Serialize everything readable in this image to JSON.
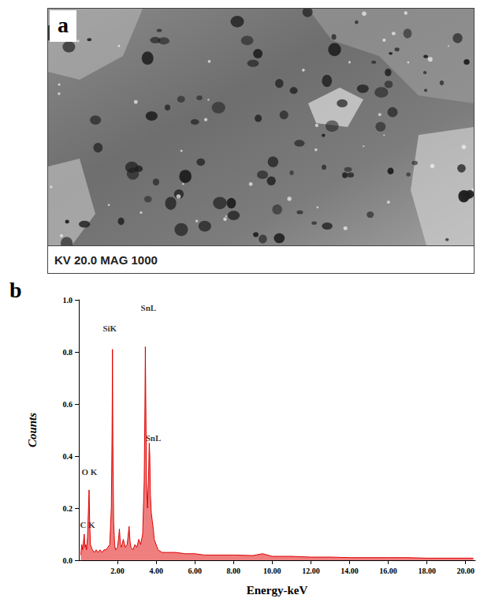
{
  "image_panel": {
    "label": "a",
    "footer": "KV 20.0 MAG 1000"
  },
  "chart_panel_label": "b",
  "chart_data": {
    "type": "line",
    "x_label": "Energy-keV",
    "y_label": "Counts",
    "color": "#e00000",
    "grid": false,
    "xlim": [
      0,
      20.5
    ],
    "ylim": [
      0,
      1.0
    ],
    "xticks": [
      {
        "value": 2,
        "label": "2.00"
      },
      {
        "value": 4,
        "label": "4.00"
      },
      {
        "value": 6,
        "label": "6.00"
      },
      {
        "value": 8,
        "label": "8.00"
      },
      {
        "value": 10,
        "label": "10.00"
      },
      {
        "value": 12,
        "label": "12.00"
      },
      {
        "value": 14,
        "label": "14.00"
      },
      {
        "value": 16,
        "label": "16.00"
      },
      {
        "value": 18,
        "label": "18.00"
      },
      {
        "value": 20,
        "label": "20.00"
      }
    ],
    "yticks": [
      {
        "value": 0,
        "label": "0.0"
      },
      0.2,
      0.4,
      0.6,
      0.8,
      {
        "value": 1.0,
        "label": "1.0"
      }
    ],
    "x": [
      0.1,
      0.15,
      0.2,
      0.25,
      0.28,
      0.32,
      0.36,
      0.4,
      0.45,
      0.5,
      0.53,
      0.56,
      0.6,
      0.7,
      0.8,
      0.9,
      1.0,
      1.1,
      1.2,
      1.3,
      1.4,
      1.5,
      1.6,
      1.68,
      1.72,
      1.74,
      1.76,
      1.8,
      1.85,
      1.9,
      2.0,
      2.05,
      2.1,
      2.15,
      2.2,
      2.3,
      2.4,
      2.5,
      2.6,
      2.65,
      2.7,
      2.8,
      2.9,
      3.0,
      3.1,
      3.2,
      3.3,
      3.38,
      3.42,
      3.44,
      3.47,
      3.5,
      3.55,
      3.6,
      3.64,
      3.67,
      3.7,
      3.75,
      3.8,
      3.85,
      3.9,
      4.0,
      4.1,
      4.3,
      4.6,
      5.0,
      5.5,
      6.0,
      6.5,
      7.0,
      8.0,
      9.0,
      9.5,
      10.0,
      11.0,
      12.0,
      13.0,
      14.0,
      15.0,
      16.0,
      17.0,
      18.0,
      19.0,
      20.0,
      20.4
    ],
    "values": [
      0.02,
      0.06,
      0.04,
      0.08,
      0.1,
      0.05,
      0.06,
      0.04,
      0.09,
      0.2,
      0.27,
      0.15,
      0.06,
      0.04,
      0.03,
      0.04,
      0.03,
      0.04,
      0.03,
      0.04,
      0.04,
      0.05,
      0.06,
      0.2,
      0.49,
      0.81,
      0.45,
      0.15,
      0.06,
      0.04,
      0.05,
      0.08,
      0.12,
      0.06,
      0.05,
      0.08,
      0.05,
      0.06,
      0.13,
      0.07,
      0.05,
      0.04,
      0.06,
      0.05,
      0.08,
      0.06,
      0.1,
      0.3,
      0.6,
      0.82,
      0.55,
      0.3,
      0.2,
      0.3,
      0.45,
      0.4,
      0.25,
      0.18,
      0.15,
      0.12,
      0.08,
      0.06,
      0.04,
      0.03,
      0.03,
      0.03,
      0.025,
      0.025,
      0.02,
      0.02,
      0.02,
      0.018,
      0.025,
      0.015,
      0.015,
      0.012,
      0.012,
      0.01,
      0.01,
      0.01,
      0.01,
      0.008,
      0.008,
      0.008,
      0.008
    ],
    "annotations": [
      {
        "text": "C K",
        "x": 0.45,
        "y": 0.135
      },
      {
        "text": "O K",
        "x": 0.55,
        "y": 0.34
      },
      {
        "text": "SiK",
        "x": 1.6,
        "y": 0.89
      },
      {
        "text": "SnL",
        "x": 3.6,
        "y": 0.97
      },
      {
        "text": "SnL",
        "x": 3.85,
        "y": 0.47
      }
    ]
  }
}
